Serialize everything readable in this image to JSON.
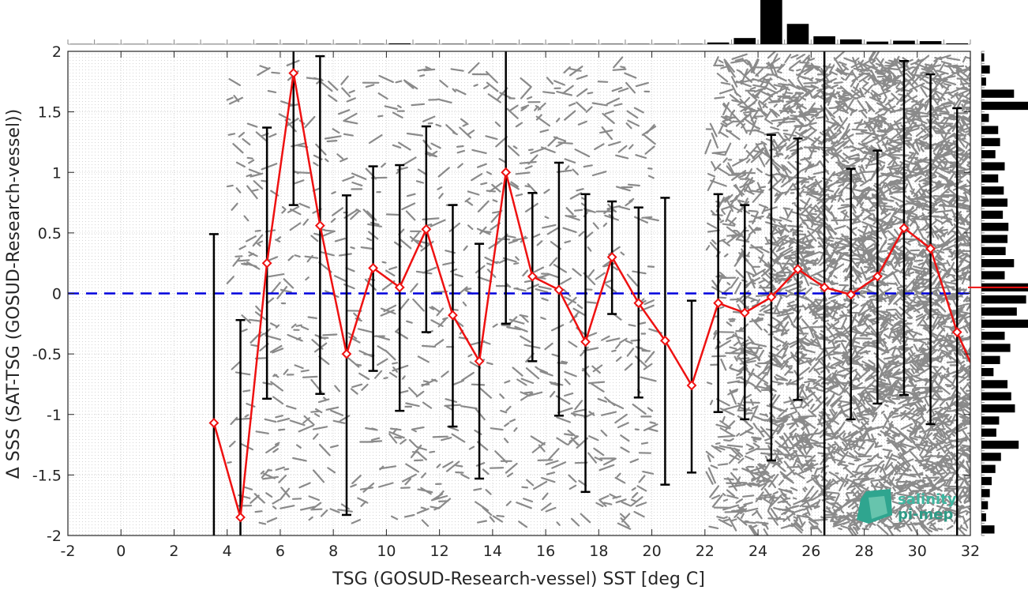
{
  "chart_data": {
    "type": "line",
    "xlabel": "TSG (GOSUD-Research-vessel) SST [deg C]",
    "ylabel": "Δ SSS (SAT-TSG (GOSUD-Research-vessel))",
    "xlim": [
      -2,
      32
    ],
    "ylim": [
      -2,
      2
    ],
    "xticks": [
      "-2",
      "0",
      "2",
      "4",
      "6",
      "8",
      "10",
      "12",
      "14",
      "16",
      "18",
      "20",
      "22",
      "24",
      "26",
      "28",
      "30",
      "32"
    ],
    "yticks": [
      "-2",
      "-1.5",
      "-1",
      "-0.5",
      "0",
      "0.5",
      "1",
      "1.5",
      "2"
    ],
    "grid": true,
    "zero_line": {
      "y": 0,
      "color": "#0000dd",
      "style": "dashed"
    },
    "vertical_line_x": 26.5,
    "series": [
      {
        "color": "#ee1111",
        "x": [
          3.5,
          4.5,
          5.5,
          6.5,
          7.5,
          8.5,
          9.5,
          10.5,
          11.5,
          12.5,
          13.5,
          14.5,
          15.5,
          16.5,
          17.5,
          18.5,
          19.5,
          20.5,
          21.5,
          22.5,
          23.5,
          24.5,
          25.5,
          26.5,
          27.5,
          28.5,
          29.5,
          30.5,
          31.5,
          32
        ],
        "mean": [
          -1.07,
          -1.85,
          0.25,
          1.82,
          0.56,
          -0.5,
          0.21,
          0.05,
          0.53,
          -0.18,
          -0.56,
          1.0,
          0.14,
          0.03,
          -0.4,
          0.3,
          -0.08,
          -0.39,
          -0.76,
          -0.08,
          -0.16,
          -0.03,
          0.2,
          0.05,
          -0.01,
          0.14,
          0.54,
          0.37,
          -0.32,
          -0.57
        ],
        "err_low": [
          -2.0,
          -2.0,
          -0.87,
          0.73,
          -0.83,
          -1.83,
          -0.64,
          -0.97,
          -0.32,
          -1.1,
          -1.53,
          -0.25,
          -0.56,
          -1.01,
          -1.64,
          -0.17,
          -0.86,
          -1.58,
          -1.48,
          -0.98,
          -1.04,
          -1.38,
          -0.88,
          -2.0,
          -1.04,
          -0.91,
          -0.84,
          -1.08,
          -2.0,
          null
        ],
        "err_high": [
          0.49,
          -0.22,
          1.37,
          2.0,
          1.96,
          0.81,
          1.05,
          1.06,
          1.38,
          0.73,
          0.41,
          2.0,
          0.83,
          1.08,
          0.82,
          0.76,
          0.71,
          0.79,
          -0.06,
          0.82,
          0.73,
          1.31,
          1.28,
          2.0,
          1.03,
          1.18,
          1.92,
          1.81,
          1.53,
          null
        ]
      }
    ],
    "top_histogram": {
      "bins": [
        -1.5,
        -0.5,
        0.5,
        1.5,
        2.5,
        3.5,
        4.5,
        5.5,
        6.5,
        7.5,
        8.5,
        9.5,
        10.5,
        11.5,
        12.5,
        13.5,
        14.5,
        15.5,
        16.5,
        17.5,
        18.5,
        19.5,
        20.5,
        21.5,
        22.5,
        23.5,
        24.5,
        25.5,
        26.5,
        27.5,
        28.5,
        29.5,
        30.5,
        31.5
      ],
      "counts": [
        0.5,
        0.5,
        0.5,
        0.5,
        0.5,
        0.5,
        0.5,
        1,
        1,
        1,
        1,
        1,
        2,
        1,
        1,
        1,
        1,
        1,
        1,
        1,
        1,
        1,
        1,
        1,
        4,
        14,
        100,
        46,
        18,
        11,
        6,
        8,
        7,
        2
      ]
    },
    "right_histogram": {
      "bins": [
        1.95,
        1.85,
        1.75,
        1.65,
        1.55,
        1.45,
        1.35,
        1.25,
        1.15,
        1.05,
        0.95,
        0.85,
        0.75,
        0.65,
        0.55,
        0.45,
        0.35,
        0.25,
        0.15,
        0.05,
        -0.05,
        -0.15,
        -0.25,
        -0.35,
        -0.45,
        -0.55,
        -0.65,
        -0.75,
        -0.85,
        -0.95,
        -1.05,
        -1.15,
        -1.25,
        -1.35,
        -1.45,
        -1.55,
        -1.65,
        -1.75,
        -1.85,
        -1.95
      ],
      "counts": [
        6,
        18,
        10,
        70,
        100,
        16,
        36,
        40,
        30,
        50,
        36,
        48,
        56,
        46,
        58,
        56,
        52,
        70,
        50,
        100,
        96,
        76,
        100,
        50,
        62,
        40,
        26,
        56,
        64,
        72,
        38,
        32,
        80,
        42,
        30,
        22,
        18,
        14,
        10,
        28
      ],
      "median_line": 0.05
    },
    "logo": [
      "salinity",
      "pi-mep"
    ]
  }
}
